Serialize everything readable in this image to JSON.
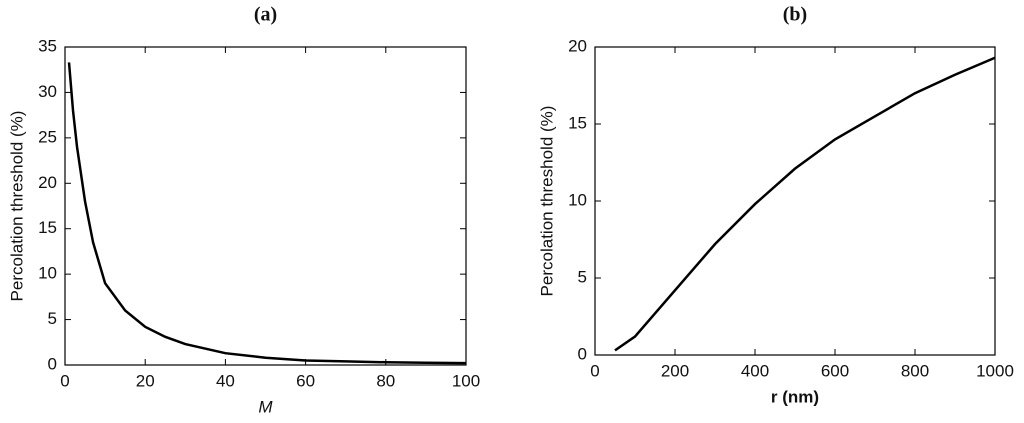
{
  "chart_data": [
    {
      "type": "line",
      "title": "(a)",
      "x_label": "M",
      "y_label": "Percolation threshold (%)",
      "x": [
        1,
        2,
        3,
        5,
        7,
        10,
        15,
        20,
        25,
        30,
        40,
        50,
        60,
        70,
        80,
        90,
        100
      ],
      "series": [
        {
          "color": "#000000",
          "values": [
            33.3,
            28,
            24,
            18,
            13.5,
            9,
            6,
            4.2,
            3.1,
            2.3,
            1.3,
            0.8,
            0.5,
            0.4,
            0.3,
            0.25,
            0.2
          ]
        }
      ],
      "xlim": [
        0,
        100
      ],
      "xticks": [
        0,
        20,
        40,
        60,
        80,
        100
      ],
      "ylim": [
        0,
        35
      ],
      "yticks": [
        0,
        5,
        10,
        15,
        20,
        25,
        30,
        35
      ]
    },
    {
      "type": "line",
      "title": "(b)",
      "x_label": "r (nm)",
      "y_label": "Percolation threshold (%)",
      "x": [
        50,
        100,
        200,
        300,
        400,
        500,
        600,
        700,
        800,
        900,
        1000
      ],
      "series": [
        {
          "color": "#000000",
          "values": [
            0.3,
            1.2,
            4.2,
            7.2,
            9.8,
            12.1,
            14.0,
            15.5,
            17.0,
            18.2,
            19.3
          ]
        }
      ],
      "xlim": [
        0,
        1000
      ],
      "xticks": [
        0,
        200,
        400,
        600,
        800,
        1000
      ],
      "ylim": [
        0,
        20
      ],
      "yticks": [
        0,
        5,
        10,
        15,
        20
      ]
    }
  ]
}
